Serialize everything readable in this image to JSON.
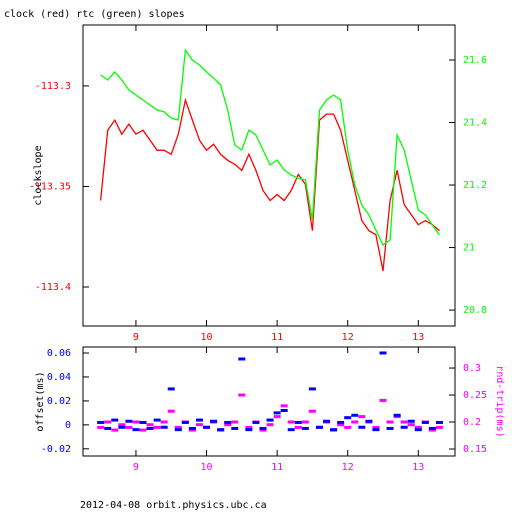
{
  "footer": "2012-04-08  orbit.physics.ubc.ca",
  "chart_data": [
    {
      "type": "line",
      "title": "clock (red) rtc (green) slopes",
      "ylabel": "clockslope",
      "xlim": [
        8.25,
        13.52
      ],
      "xticks": [
        9,
        10,
        11,
        12,
        13
      ],
      "ylim": [
        -113.4194,
        -113.2697
      ],
      "yticks": [
        -113.3,
        -113.35,
        -113.4
      ],
      "y2lim": [
        20.749,
        21.712
      ],
      "y2ticks": [
        21.6,
        21.4,
        21.2,
        21,
        20.8
      ],
      "x": [
        8.5,
        8.6,
        8.7,
        8.8,
        8.9,
        9.0,
        9.1,
        9.2,
        9.3,
        9.4,
        9.5,
        9.6,
        9.7,
        9.8,
        9.9,
        10.0,
        10.1,
        10.2,
        10.3,
        10.4,
        10.5,
        10.6,
        10.7,
        10.8,
        10.9,
        11.0,
        11.1,
        11.2,
        11.3,
        11.4,
        11.5,
        11.6,
        11.7,
        11.8,
        11.9,
        12.0,
        12.1,
        12.2,
        12.3,
        12.4,
        12.5,
        12.6,
        12.7,
        12.8,
        12.9,
        13.0,
        13.1,
        13.2,
        13.3
      ],
      "series": [
        {
          "name": "clock",
          "color": "#ff0000",
          "values": [
            -113.357,
            -113.322,
            -113.317,
            -113.324,
            -113.319,
            -113.324,
            -113.322,
            -113.327,
            -113.332,
            -113.332,
            -113.334,
            -113.324,
            -113.307,
            -113.317,
            -113.327,
            -113.332,
            -113.329,
            -113.334,
            -113.337,
            -113.339,
            -113.342,
            -113.334,
            -113.342,
            -113.352,
            -113.357,
            -113.354,
            -113.357,
            -113.352,
            -113.344,
            -113.349,
            -113.372,
            -113.317,
            -113.314,
            -113.314,
            -113.322,
            -113.337,
            -113.352,
            -113.367,
            -113.372,
            -113.374,
            -113.392,
            -113.357,
            -113.342,
            -113.359,
            -113.364,
            -113.369,
            -113.367,
            -113.369,
            -113.372
          ]
        },
        {
          "name": "rtc",
          "color": "#00ff00",
          "axis": "y2",
          "values": [
            21.552,
            21.536,
            21.562,
            21.536,
            21.504,
            21.488,
            21.472,
            21.456,
            21.44,
            21.434,
            21.414,
            21.408,
            21.632,
            21.6,
            21.584,
            21.562,
            21.542,
            21.52,
            21.44,
            21.328,
            21.312,
            21.376,
            21.36,
            21.312,
            21.264,
            21.28,
            21.248,
            21.232,
            21.222,
            21.216,
            21.088,
            21.44,
            21.472,
            21.488,
            21.472,
            21.312,
            21.2,
            21.136,
            21.104,
            21.056,
            21.008,
            21.024,
            21.36,
            21.312,
            21.216,
            21.12,
            21.104,
            21.072,
            21.04
          ]
        }
      ]
    },
    {
      "type": "scatter",
      "ylabel": "offset(ms)",
      "y2label": "rnd-trip(ms)",
      "xlim": [
        8.25,
        13.52
      ],
      "xticks": [
        9,
        10,
        11,
        12,
        13
      ],
      "ylim": [
        -0.026,
        0.065
      ],
      "yticks": [
        0.06,
        0.04,
        0.02,
        0,
        -0.02
      ],
      "y2lim": [
        0.137,
        0.339
      ],
      "y2ticks": [
        0.3,
        0.25,
        0.2,
        0.15
      ],
      "x": [
        8.5,
        8.6,
        8.7,
        8.8,
        8.9,
        9.0,
        9.1,
        9.2,
        9.3,
        9.4,
        9.5,
        9.6,
        9.7,
        9.8,
        9.9,
        10.0,
        10.1,
        10.2,
        10.3,
        10.4,
        10.5,
        10.6,
        10.7,
        10.8,
        10.9,
        11.0,
        11.1,
        11.2,
        11.3,
        11.4,
        11.5,
        11.6,
        11.7,
        11.8,
        11.9,
        12.0,
        12.1,
        12.2,
        12.3,
        12.4,
        12.5,
        12.6,
        12.7,
        12.8,
        12.9,
        13.0,
        13.1,
        13.2,
        13.3
      ],
      "series": [
        {
          "name": "rnd-trip",
          "color": "#ff00ff",
          "axis": "y2",
          "values": [
            0.19,
            0.2,
            0.185,
            0.195,
            0.19,
            0.2,
            0.185,
            0.195,
            0.19,
            0.2,
            0.22,
            0.19,
            0.2,
            0.185,
            0.195,
            0.19,
            0.2,
            0.185,
            0.195,
            0.2,
            0.25,
            0.19,
            0.2,
            0.185,
            0.195,
            0.21,
            0.23,
            0.2,
            0.19,
            0.2,
            0.22,
            0.19,
            0.2,
            0.185,
            0.195,
            0.19,
            0.2,
            0.21,
            0.2,
            0.19,
            0.24,
            0.2,
            0.21,
            0.2,
            0.195,
            0.19,
            0.2,
            0.185,
            0.19
          ]
        },
        {
          "name": "offset",
          "color": "#0000ff",
          "values": [
            0.002,
            -0.003,
            0.004,
            -0.002,
            0.003,
            -0.004,
            0.002,
            -0.003,
            0.004,
            -0.002,
            0.03,
            -0.004,
            0.002,
            -0.003,
            0.004,
            -0.002,
            0.003,
            -0.004,
            0.002,
            -0.003,
            0.055,
            -0.004,
            0.002,
            -0.003,
            0.004,
            0.01,
            0.012,
            -0.004,
            0.002,
            -0.003,
            0.03,
            -0.002,
            0.003,
            -0.004,
            0.002,
            0.006,
            0.008,
            -0.002,
            0.003,
            -0.004,
            0.06,
            -0.003,
            0.008,
            -0.002,
            0.003,
            -0.004,
            0.002,
            -0.003,
            0.002
          ]
        }
      ]
    }
  ]
}
